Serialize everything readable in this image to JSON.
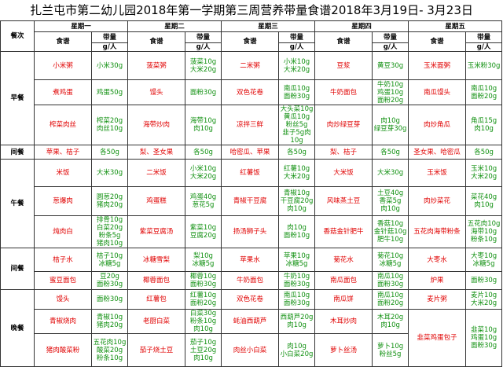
{
  "title": "扎兰屯市第二幼儿园2018年第一学期第三周营养带量食谱2018年3月19日- 3月23日",
  "header": {
    "meal_label": "餐次",
    "days": [
      "星期一",
      "星期二",
      "星期三",
      "星期四",
      "星期五"
    ],
    "recipe_label": "食谱",
    "amount_label": "带量",
    "unit_label": "g/人"
  },
  "sections": [
    {
      "meal": "早餐",
      "rows": [
        [
          {
            "dish": "小米粥",
            "amount": [
              "小米30g"
            ]
          },
          {
            "dish": "菠菜粥",
            "amount": [
              "菠菜10g",
              "大米20g"
            ]
          },
          {
            "dish": "二米粥",
            "amount": [
              "小米10g",
              "大米20g"
            ]
          },
          {
            "dish": "豆浆",
            "amount": [
              "黄豆30g"
            ]
          },
          {
            "dish": "玉米面粥",
            "amount": [
              "玉米粉30g"
            ]
          }
        ],
        [
          {
            "dish": "煮鸡蛋",
            "amount": [
              "鸡蛋50g"
            ]
          },
          {
            "dish": "馒头",
            "amount": [
              "面粉30g"
            ]
          },
          {
            "dish": "双色花卷",
            "amount": [
              "南瓜10g",
              "面粉30g"
            ]
          },
          {
            "dish": "牛奶面包",
            "amount": [
              "牛奶10g",
              "鸡蛋10g",
              "面粉20g"
            ]
          },
          {
            "dish": "南瓜馒头",
            "amount": [
              "南瓜10g",
              "面粉20g"
            ]
          }
        ],
        [
          {
            "dish": "榨菜肉丝",
            "amount": [
              "榨菜20g",
              "肉丝10g"
            ]
          },
          {
            "dish": "海带炒肉",
            "amount": [
              "海带10g",
              "肉10g"
            ]
          },
          {
            "dish": "凉拌三鲜",
            "amount": [
              "大头菜10g",
              "黄瓜10g",
              "粉丝5g",
              "韭子5g肉10g"
            ]
          },
          {
            "dish": "肉炒绿豆芽",
            "amount": [
              "肉10g",
              "绿豆芽30g"
            ]
          },
          {
            "dish": "肉炒角瓜",
            "amount": [
              "角瓜15g",
              "肉10g"
            ]
          }
        ]
      ]
    },
    {
      "meal": "间餐",
      "rows": [
        [
          {
            "dish": "苹果、桔子",
            "amount": [
              "各50g"
            ]
          },
          {
            "dish": "梨、圣女果",
            "amount": [
              "各50g"
            ]
          },
          {
            "dish": "哈密瓜、苹果",
            "amount": [
              "各50g"
            ]
          },
          {
            "dish": "梨、桔子",
            "amount": [
              "各50g"
            ]
          },
          {
            "dish": "圣女果、哈密瓜",
            "amount": [
              "各50g"
            ]
          }
        ]
      ]
    },
    {
      "meal": "午餐",
      "rows": [
        [
          {
            "dish": "米饭",
            "amount": [
              "大米30g"
            ]
          },
          {
            "dish": "二米饭",
            "amount": [
              "小米10g",
              "大米20g"
            ]
          },
          {
            "dish": "红薯饭",
            "amount": [
              "红薯10g",
              "大米20g"
            ]
          },
          {
            "dish": "大米饭",
            "amount": [
              "大米30g"
            ]
          },
          {
            "dish": "玉米饭",
            "amount": [
              "玉米10g",
              "大米20g"
            ]
          }
        ],
        [
          {
            "dish": "葱爆肉",
            "amount": [
              "圆葱20g",
              "猪肉20g"
            ]
          },
          {
            "dish": "鸡蛋糕",
            "amount": [
              "鸡蛋40g",
              "葱花5g"
            ]
          },
          {
            "dish": "青椒干豆腐",
            "amount": [
              "青椒10g",
              "干豆腐20g",
              "肉10g"
            ]
          },
          {
            "dish": "风味蒸土豆",
            "amount": [
              "土豆40g",
              "香菜5g",
              "肉10g"
            ]
          },
          {
            "dish": "肉炒菜花",
            "amount": [
              "菜花40g",
              "肉10g"
            ]
          }
        ],
        [
          {
            "dish": "炖肉白",
            "amount": [
              "排骨10g",
              "白菜20g",
              "粉条5g",
              "猪肉10g"
            ]
          },
          {
            "dish": "紫菜豆腐汤",
            "amount": [
              "紫菜10g",
              "豆腐20g"
            ]
          },
          {
            "dish": "扬汤狮子头",
            "amount": [
              "肉10g",
              "面粉10g"
            ]
          },
          {
            "dish": "香菇金针肥牛",
            "amount": [
              "香菇10g",
              "金针菇10g",
              "肥牛10g"
            ]
          },
          {
            "dish": "五花肉海带粉条",
            "amount": [
              "五花肉10g",
              "海带10g",
              "粉条10g"
            ]
          }
        ]
      ]
    },
    {
      "meal": "间餐",
      "rows": [
        [
          {
            "dish": "桔子水",
            "amount": [
              "桔子10g",
              "冰糖5g"
            ]
          },
          {
            "dish": "冰糖雪梨",
            "amount": [
              "梨10g",
              "冰糖5g"
            ]
          },
          {
            "dish": "苹果水",
            "amount": [
              "苹果10g",
              "冰糖5g"
            ]
          },
          {
            "dish": "菊花水",
            "amount": [
              "菊花10g",
              "冰糖5g"
            ]
          },
          {
            "dish": "大枣水",
            "amount": [
              "大枣10g",
              "冰糖5g"
            ]
          }
        ],
        [
          {
            "dish": "蜜豆面包",
            "amount": [
              "豆20g",
              "面粉30g"
            ]
          },
          {
            "dish": "椰蓉面包",
            "amount": [
              "椰蓉10g",
              "面粉30g"
            ]
          },
          {
            "dish": "牛奶面包",
            "amount": [
              "牛奶10g",
              "面粉30g"
            ]
          },
          {
            "dish": "南瓜面包",
            "amount": [
              "南瓜10g",
              "面粉30g"
            ]
          },
          {
            "dish": "炉果",
            "amount": [
              "面粉30g"
            ]
          }
        ]
      ]
    },
    {
      "meal": "晚餐",
      "rows": [
        [
          {
            "dish": "馒头",
            "amount": [
              "面粉30g"
            ]
          },
          {
            "dish": "红薯包",
            "amount": [
              "红薯10g",
              "面粉20g"
            ]
          },
          {
            "dish": "双色花卷",
            "amount": [
              "南瓜10g",
              "面粉30g"
            ]
          },
          {
            "dish": "南瓜饼",
            "amount": [
              "南瓜10g",
              "面粉20g"
            ]
          },
          {
            "dish": "麦片粥",
            "amount": [
              "麦片10g",
              "大米20g"
            ]
          }
        ],
        [
          {
            "dish": "青椒烧肉",
            "amount": [
              "青椒10g",
              "猪肉20g"
            ]
          },
          {
            "dish": "老厨白菜",
            "amount": [
              "白菜30g",
              "粉条10g",
              "肉10g"
            ]
          },
          {
            "dish": "蚝油西葫芦",
            "amount": [
              "西葫芦20g",
              "肉10g"
            ]
          },
          {
            "dish": "木耳炒肉",
            "amount": [
              "木耳20g",
              "肉10g"
            ]
          },
          {
            "dish": "韭菜鸡蛋包子",
            "amount": [
              "韭菜10g",
              "鸡蛋10g",
              "面粉30g"
            ]
          }
        ],
        [
          {
            "dish": "猪肉酸菜粉",
            "amount": [
              "五花肉10g",
              "酸菜20g",
              "粉条10g"
            ]
          },
          {
            "dish": "茄子烧土豆",
            "amount": [
              "茄子10g",
              "土豆20g",
              "肉10g"
            ]
          },
          {
            "dish": "肉丝小白菜",
            "amount": [
              "肉10g",
              "小白菜20g"
            ]
          },
          {
            "dish": "萝卜丝汤",
            "amount": [
              "萝卜10g",
              "粉丝5g"
            ]
          },
          null
        ]
      ]
    }
  ]
}
